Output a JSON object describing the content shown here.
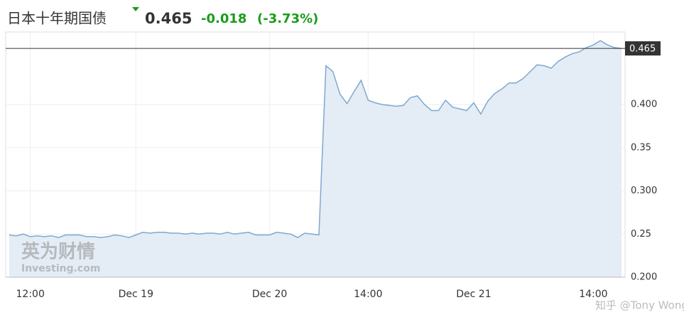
{
  "header": {
    "title": "日本十年期国债",
    "change": -0.018,
    "change_percent": {
      "value": -3.73,
      "label": "(-3.73%)"
    }
  },
  "chart_data": {
    "type": "area",
    "last_price": 0.465,
    "categories": [
      null,
      null,
      null,
      "12:00",
      null,
      null,
      null,
      null,
      null,
      null,
      null,
      null,
      null,
      null,
      null,
      null,
      null,
      null,
      "Dec 19",
      null,
      null,
      null,
      null,
      null,
      null,
      null,
      null,
      null,
      null,
      null,
      null,
      null,
      null,
      null,
      null,
      null,
      null,
      "Dec 20",
      null,
      null,
      null,
      null,
      null,
      null,
      null,
      null,
      null,
      null,
      null,
      null,
      null,
      "14:00",
      null,
      null,
      null,
      null,
      null,
      null,
      null,
      null,
      null,
      null,
      null,
      null,
      null,
      null,
      "Dec 21",
      null,
      null,
      null,
      null,
      null,
      null,
      null,
      null,
      null,
      null,
      null,
      null,
      null,
      null,
      null,
      null,
      "14:00",
      null,
      null,
      null,
      null
    ],
    "values": [
      0.249,
      0.248,
      0.25,
      0.247,
      0.248,
      0.247,
      0.248,
      0.246,
      0.249,
      0.249,
      0.249,
      0.247,
      0.247,
      0.246,
      0.247,
      0.249,
      0.248,
      0.246,
      0.249,
      0.252,
      0.251,
      0.252,
      0.252,
      0.251,
      0.251,
      0.25,
      0.251,
      0.25,
      0.251,
      0.251,
      0.25,
      0.252,
      0.25,
      0.251,
      0.252,
      0.249,
      0.249,
      0.249,
      0.252,
      0.251,
      0.25,
      0.246,
      0.251,
      0.25,
      0.249,
      0.445,
      0.438,
      0.412,
      0.401,
      0.415,
      0.428,
      0.405,
      0.402,
      0.4,
      0.399,
      0.398,
      0.399,
      0.408,
      0.41,
      0.4,
      0.393,
      0.393,
      0.405,
      0.397,
      0.395,
      0.393,
      0.402,
      0.389,
      0.404,
      0.413,
      0.418,
      0.425,
      0.425,
      0.43,
      0.438,
      0.446,
      0.445,
      0.442,
      0.45,
      0.455,
      0.459,
      0.461,
      0.466,
      0.469,
      0.474,
      0.469,
      0.466,
      0.465
    ],
    "color": "#7fa8d0",
    "fill": "#e4ecf5",
    "ylim": [
      0.2,
      0.484
    ],
    "yticks": [
      {
        "value": 0.2,
        "label": "0.200"
      },
      0.25,
      {
        "value": 0.3,
        "label": "0.300"
      },
      0.35,
      {
        "value": 0.4,
        "label": "0.400"
      }
    ],
    "grid": true,
    "watermarks": [
      "英为财情",
      "Investing.com",
      "知乎 @Tony Wong"
    ]
  }
}
